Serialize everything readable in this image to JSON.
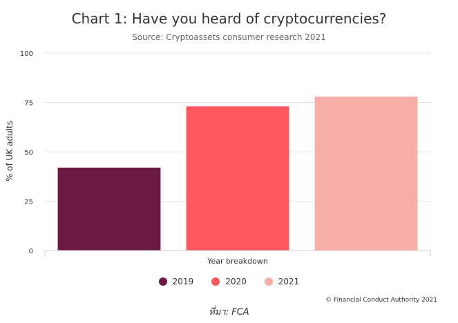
{
  "chart_data": {
    "type": "bar",
    "title": "Chart 1: Have you heard of cryptocurrencies?",
    "subtitle": "Source: Cryptoassets consumer research 2021",
    "xlabel": "Year breakdown",
    "ylabel": "% of UK adults",
    "ylim": [
      0,
      100
    ],
    "yticks": [
      "0",
      "25",
      "50",
      "75",
      "100"
    ],
    "grid": true,
    "legend_position": "bottom",
    "series": [
      {
        "name": "2019",
        "value": 42,
        "color": "#6d1a42"
      },
      {
        "name": "2020",
        "value": 73,
        "color": "#ff585d"
      },
      {
        "name": "2021",
        "value": 78,
        "color": "#f8aea6"
      }
    ]
  },
  "footer": {
    "copyright": "© Financial Conduct Authority 2021",
    "source_caption": "ที่มา: FCA"
  }
}
